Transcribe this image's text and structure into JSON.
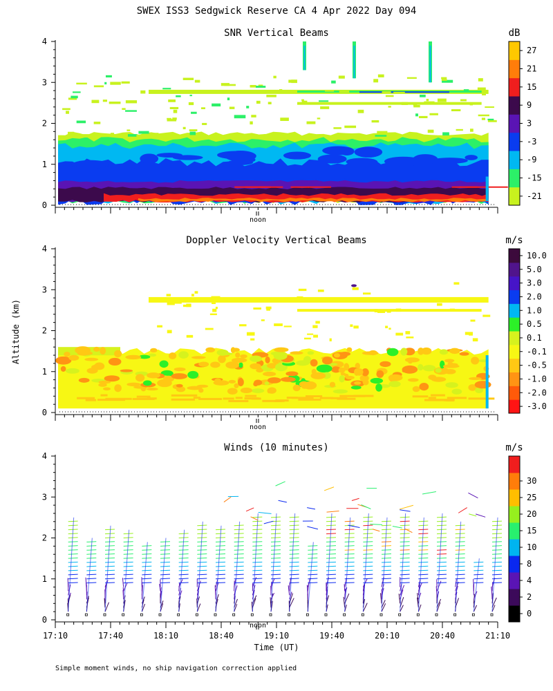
{
  "figure": {
    "title": "SWEX ISS3 Sedgwick Reserve CA   4 Apr 2022 Day 094",
    "ylabel": "Altitude (km)",
    "xlabel": "Time (UT)",
    "noon_label": "noon",
    "footnote": "Simple moment winds, no ship navigation correction applied"
  },
  "colors": {
    "snr": [
      "#c8f21e",
      "#2cf068",
      "#00b8f2",
      "#0a3cf0",
      "#5a14b4",
      "#3c0a4c",
      "#f01e1e",
      "#ff7d0a",
      "#ffc800"
    ],
    "doppler": [
      "#ff1414",
      "#ff5a0a",
      "#ff9414",
      "#ffc814",
      "#f7f714",
      "#d6f21e",
      "#2cf028",
      "#00b8f2",
      "#0a3cf0",
      "#4614c8",
      "#50148c",
      "#3c0a3c"
    ],
    "winds": [
      "#000000",
      "#3c0a5a",
      "#5a14b4",
      "#0a28f0",
      "#00b4f0",
      "#28f06e",
      "#96f01e",
      "#ffbe00",
      "#ff7d0a",
      "#f01e1e"
    ]
  },
  "chart_data": [
    {
      "id": "snr",
      "type": "heatmap",
      "title": "SNR Vertical Beams",
      "unit": "dB",
      "ylim": [
        0,
        4
      ],
      "yticks": [
        "0",
        "1",
        "2",
        "3",
        "4"
      ],
      "colorbar_labels": [
        "-21",
        "-15",
        "-9",
        "-3",
        "3",
        "9",
        "15",
        "21",
        "27"
      ],
      "time_range_ut": [
        "17:10",
        "21:10"
      ],
      "layers": [
        {
          "alt_km": [
            2.15,
            2.4
          ],
          "snr_db": -21
        },
        {
          "alt_km": [
            2.7,
            2.85
          ],
          "snr_db": -18
        },
        {
          "alt_km": [
            1.55,
            1.75
          ],
          "snr_db": -18
        },
        {
          "alt_km": [
            1.2,
            1.6
          ],
          "snr_db": -12
        },
        {
          "alt_km": [
            0.8,
            1.2
          ],
          "snr_db": -6
        },
        {
          "alt_km": [
            0.55,
            0.8
          ],
          "snr_db": -3
        },
        {
          "alt_km": [
            0.4,
            0.55
          ],
          "snr_db": 3
        },
        {
          "alt_km": [
            0.25,
            0.4
          ],
          "snr_db": 9
        },
        {
          "alt_km": [
            0.1,
            0.25
          ],
          "snr_db": 15
        }
      ]
    },
    {
      "id": "doppler",
      "type": "heatmap",
      "title": "Doppler Velocity Vertical Beams",
      "unit": "m/s",
      "ylim": [
        0,
        4
      ],
      "yticks": [
        "0",
        "1",
        "2",
        "3",
        "4"
      ],
      "colorbar_labels": [
        "-3.0",
        "-2.0",
        "-1.0",
        "-0.5",
        "-0.1",
        "0.1",
        "0.5",
        "1.0",
        "2.0",
        "3.0",
        "5.0",
        "10.0"
      ],
      "time_range_ut": [
        "17:10",
        "21:10"
      ],
      "layers": [
        {
          "alt_km": [
            0.1,
            0.6
          ],
          "w_ms": -0.1
        },
        {
          "alt_km": [
            0.6,
            1.4
          ],
          "w_ms": -0.3
        },
        {
          "alt_km": [
            1.4,
            1.6
          ],
          "w_ms": 0.3
        },
        {
          "alt_km": [
            2.7,
            2.85
          ],
          "w_ms": -0.1
        },
        {
          "alt_km": [
            2.5,
            2.55
          ],
          "w_ms": -0.1
        }
      ]
    },
    {
      "id": "winds",
      "type": "scatter",
      "title": "Winds (10 minutes)",
      "unit": "m/s",
      "ylim": [
        0,
        4
      ],
      "yticks": [
        "0",
        "1",
        "2",
        "3",
        "4"
      ],
      "colorbar_labels": [
        "0",
        "2",
        "4",
        "8",
        "10",
        "15",
        "20",
        "25",
        "30"
      ],
      "x": [
        "17:10",
        "17:40",
        "18:10",
        "18:40",
        "19:10",
        "19:40",
        "20:10",
        "20:40",
        "21:10"
      ],
      "xlim": [
        "17:10",
        "21:10"
      ],
      "profile_times": [
        "17:17",
        "17:27",
        "17:37",
        "17:47",
        "17:57",
        "18:07",
        "18:17",
        "18:27",
        "18:37",
        "18:47",
        "18:57",
        "19:07",
        "19:17",
        "19:27",
        "19:37",
        "19:47",
        "19:57",
        "20:07",
        "20:17",
        "20:27",
        "20:37",
        "20:47",
        "20:57",
        "21:07"
      ],
      "profile_tops_km": [
        2.5,
        2.0,
        2.3,
        2.2,
        1.9,
        2.0,
        2.2,
        2.4,
        2.3,
        2.4,
        2.6,
        2.6,
        2.6,
        1.9,
        2.6,
        2.5,
        2.6,
        2.5,
        2.6,
        2.5,
        2.6,
        2.4,
        1.5,
        2.5
      ]
    }
  ]
}
